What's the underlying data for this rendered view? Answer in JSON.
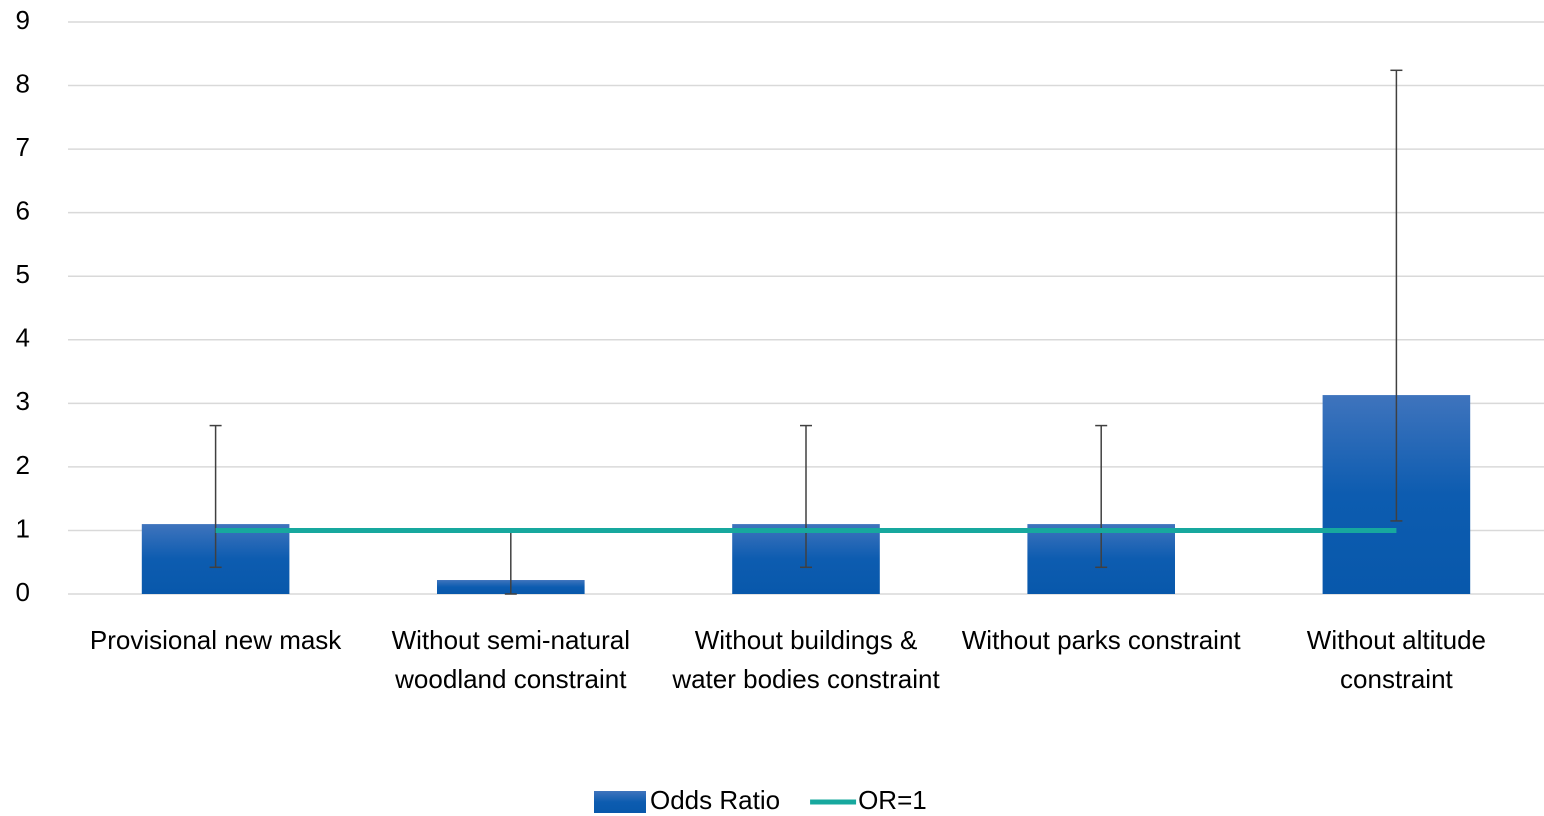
{
  "chart_data": {
    "type": "bar",
    "categories": [
      "Provisional new mask",
      "Without semi-natural woodland constraint",
      "Without buildings & water bodies constraint",
      "Without parks constraint",
      "Without altitude constraint"
    ],
    "series": [
      {
        "name": "Odds Ratio",
        "type": "bar",
        "color": "#1f5fb0",
        "values": [
          1.1,
          0.22,
          1.1,
          1.1,
          3.13
        ],
        "lower": [
          0.42,
          0,
          0.42,
          0.42,
          1.15
        ],
        "upper": [
          2.65,
          1.0,
          2.65,
          2.65,
          8.24
        ]
      },
      {
        "name": "OR=1",
        "type": "line",
        "color": "#17a89e",
        "values": [
          1,
          1,
          1,
          1,
          1
        ]
      }
    ],
    "ylim": [
      0,
      9
    ],
    "yticks": [
      0,
      1,
      2,
      3,
      4,
      5,
      6,
      7,
      8,
      9
    ],
    "grid": true,
    "legend": "bottom"
  }
}
